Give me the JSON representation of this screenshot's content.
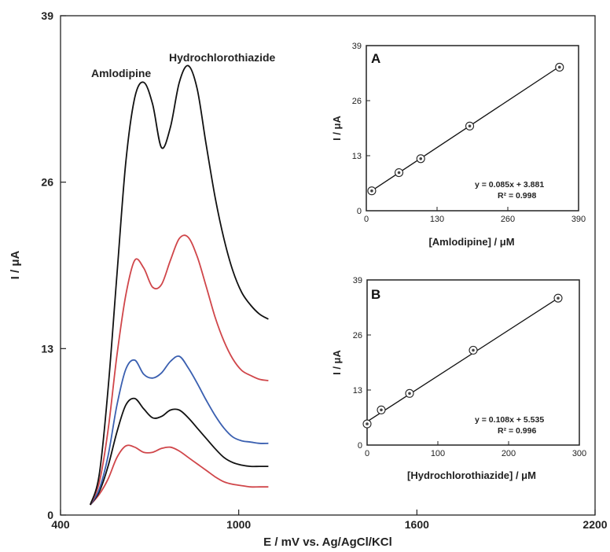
{
  "chart_data": [
    {
      "type": "line",
      "xlabel": "E / mV vs. Ag/AgCl/KCl",
      "ylabel": "I / μA",
      "xlim": [
        400,
        2200
      ],
      "ylim": [
        0,
        39
      ],
      "xticks": [
        "400",
        "1000",
        "1600",
        "2200"
      ],
      "yticks": [
        "0",
        "13",
        "26",
        "39"
      ],
      "annotations": [
        "Amlodipine",
        "Hydrochlorothiazide"
      ],
      "x": [
        500,
        530,
        560,
        590,
        620,
        650,
        680,
        710,
        740,
        770,
        800,
        830,
        860,
        890,
        920,
        950,
        980,
        1010,
        1040,
        1070,
        1100
      ],
      "series": [
        {
          "color": "#d0464a",
          "values": [
            0.8,
            1.6,
            2.8,
            4.5,
            5.4,
            5.3,
            4.9,
            4.9,
            5.2,
            5.3,
            5.0,
            4.5,
            4.0,
            3.5,
            3.0,
            2.6,
            2.4,
            2.3,
            2.2,
            2.2,
            2.2
          ]
        },
        {
          "color": "#111111",
          "values": [
            0.8,
            1.8,
            3.8,
            6.5,
            8.6,
            9.1,
            8.3,
            7.6,
            7.7,
            8.2,
            8.2,
            7.6,
            6.8,
            6.0,
            5.2,
            4.5,
            4.1,
            3.9,
            3.8,
            3.8,
            3.8
          ]
        },
        {
          "color": "#3a5fb0",
          "values": [
            0.8,
            2.0,
            4.6,
            8.6,
            11.4,
            12.1,
            11.0,
            10.7,
            11.1,
            12.0,
            12.4,
            11.5,
            10.3,
            9.0,
            7.8,
            6.8,
            6.1,
            5.8,
            5.7,
            5.6,
            5.6
          ]
        },
        {
          "color": "#d0464a",
          "values": [
            0.8,
            2.5,
            6.6,
            12.5,
            17.2,
            19.9,
            19.3,
            17.8,
            18.0,
            19.9,
            21.6,
            21.7,
            20.2,
            17.9,
            15.5,
            13.6,
            12.2,
            11.3,
            10.9,
            10.6,
            10.5
          ]
        },
        {
          "color": "#111111",
          "values": [
            0.8,
            3.1,
            9.8,
            18.8,
            27.6,
            32.6,
            33.8,
            32.1,
            28.7,
            30.3,
            33.8,
            35.1,
            33.3,
            29.0,
            24.9,
            21.6,
            19.1,
            17.4,
            16.4,
            15.7,
            15.3
          ]
        }
      ]
    },
    {
      "type": "scatter",
      "panel_label": "A",
      "xlabel": "[Amlodipine] / μM",
      "ylabel": "I / μA",
      "xlim": [
        0,
        390
      ],
      "ylim": [
        0,
        39
      ],
      "xticks": [
        "0",
        "130",
        "260",
        "390"
      ],
      "yticks": [
        "0",
        "13",
        "26",
        "39"
      ],
      "x": [
        10,
        60,
        100,
        190,
        355
      ],
      "y": [
        4.7,
        9.0,
        12.3,
        20.0,
        33.9
      ],
      "fit_line": {
        "slope": 0.085,
        "intercept": 3.881
      },
      "equation": "y = 0.085x + 3.881",
      "r2": "R² = 0.998"
    },
    {
      "type": "scatter",
      "panel_label": "B",
      "xlabel": "[Hydrochlorothiazide] / μM",
      "ylabel": "I / μA",
      "xlim": [
        0,
        300
      ],
      "ylim": [
        0,
        39
      ],
      "xticks": [
        "0",
        "100",
        "200",
        "300"
      ],
      "yticks": [
        "0",
        "13",
        "26",
        "39"
      ],
      "x": [
        0,
        20,
        60,
        150,
        270
      ],
      "y": [
        5.0,
        8.3,
        12.2,
        22.4,
        34.7
      ],
      "fit_line": {
        "slope": 0.108,
        "intercept": 5.535
      },
      "equation": "y = 0.108x + 5.535",
      "r2": "R² = 0.996"
    }
  ]
}
